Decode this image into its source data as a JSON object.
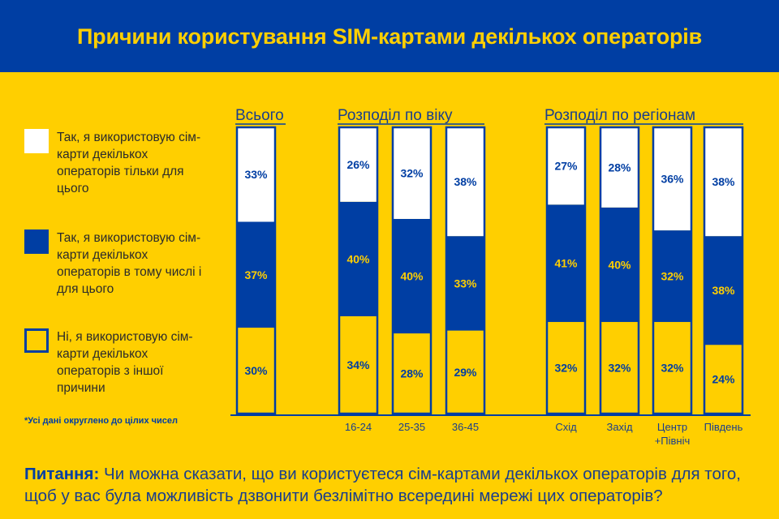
{
  "title": "Причини користування SIM-картами декількох операторів",
  "legend": [
    {
      "swatch": "white",
      "text": "Так, я використовую сім-карти декількох операторів тільки для цього"
    },
    {
      "swatch": "blue",
      "text": "Так, я використовую сім-карти декількох операторів в тому числі і для цього"
    },
    {
      "swatch": "yellow",
      "text": "Ні, я використовую сім-карти декількох операторів з іншої причини"
    }
  ],
  "footnote": "*Усі дані округлено до цілих чисел",
  "question": {
    "label": "Питання:",
    "text": " Чи можна сказати, що ви користуєтеся сім-картами декількох операторів для того, щоб у вас була можливість дзвонити безлімітно всередині мережі цих операторів?"
  },
  "colors": {
    "blue": "#003EA3",
    "yellow": "#FFCF00",
    "white": "#FFFFFF"
  },
  "chart_data": {
    "type": "bar",
    "stacked": true,
    "percent_stacked": true,
    "groups": [
      {
        "title": "Всього",
        "bars": [
          0
        ]
      },
      {
        "title": "Розподіл по віку",
        "bars": [
          1,
          2,
          3
        ]
      },
      {
        "title": "Розподіл по регіонам",
        "bars": [
          4,
          5,
          6,
          7
        ]
      }
    ],
    "categories": [
      "",
      "16-24",
      "25-35",
      "36-45",
      "Схід",
      "Захід",
      "Центр\n+Північ",
      "Південь"
    ],
    "series": [
      {
        "name": "Ні, я використовую сім-карти декількох операторів з іншої причини",
        "color": "#FFCF00",
        "values": [
          30,
          34,
          28,
          29,
          32,
          32,
          32,
          24
        ],
        "labels": [
          "30%",
          "34%",
          "28%",
          "29%",
          "32%",
          "32%",
          "32%",
          "24%"
        ]
      },
      {
        "name": "Так, я використовую сім-карти декількох операторів в тому числі і для цього",
        "color": "#003EA3",
        "values": [
          37,
          40,
          40,
          33,
          41,
          40,
          32,
          38
        ],
        "labels": [
          "37%",
          "40%",
          "40%",
          "33%",
          "41%",
          "40%",
          "32%",
          "38%"
        ]
      },
      {
        "name": "Так, я використовую сім-карти декількох операторів тільки для цього",
        "color": "#FFFFFF",
        "values": [
          33,
          26,
          32,
          38,
          27,
          28,
          36,
          38
        ],
        "labels": [
          "33%",
          "26%",
          "32%",
          "38%",
          "27%",
          "28%",
          "36%",
          "38%"
        ]
      }
    ],
    "ylim": [
      0,
      100
    ]
  }
}
